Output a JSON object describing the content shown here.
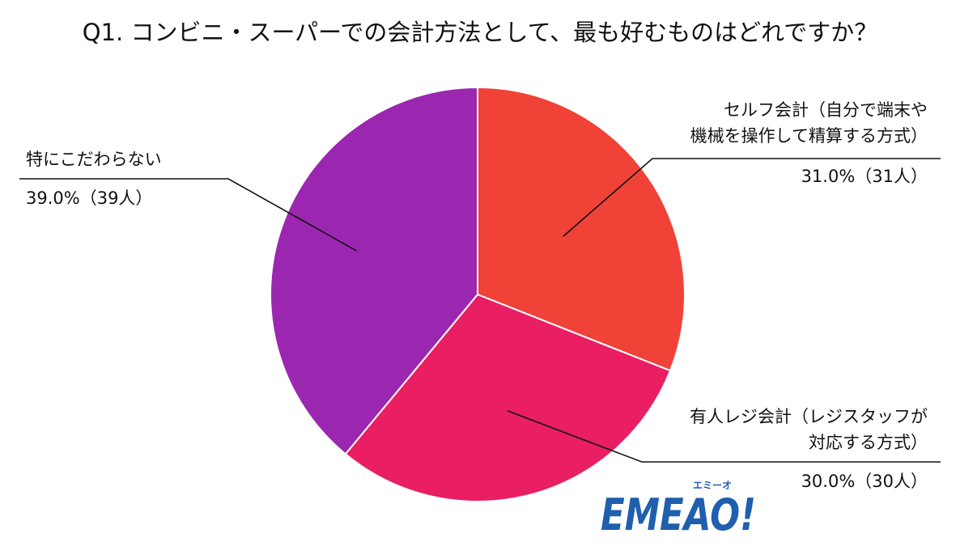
{
  "chart_data": {
    "type": "pie",
    "title": "Q1. コンビニ・スーパーでの会計方法として、最も好むものはどれですか？",
    "start_angle_deg": 0,
    "direction": "clockwise",
    "slices": [
      {
        "label_lines": [
          "セルフ会計（自分で端末や",
          "機械を操作して精算する方式）"
        ],
        "value": 31.0,
        "value_label": "31.0%（31人）",
        "color": "#f04237"
      },
      {
        "label_lines": [
          "有人レジ会計（レジスタッフが",
          "対応する方式）"
        ],
        "value": 30.0,
        "value_label": "30.0%（30人）",
        "color": "#e91e63"
      },
      {
        "label_lines": [
          "特にこだわらない"
        ],
        "value": 39.0,
        "value_label": "39.0%（39人）",
        "color": "#9b27b0"
      }
    ]
  },
  "logo": {
    "text": "EMEAO!",
    "kana": "エミーオ",
    "color": "#1f5fae",
    "accent_color": "#f2b233"
  }
}
